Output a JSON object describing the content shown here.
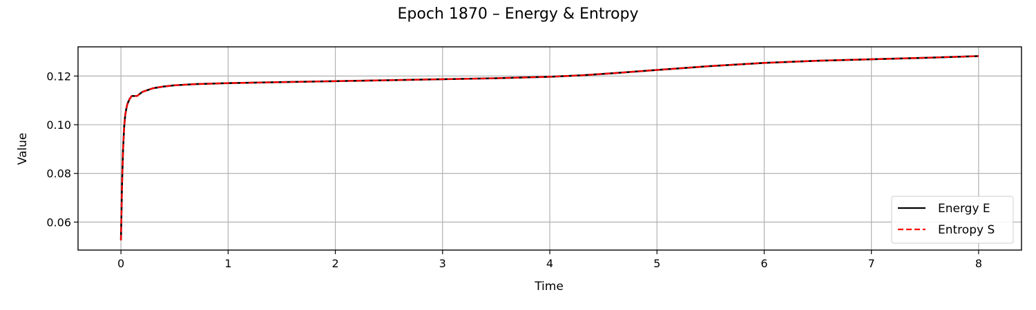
{
  "chart_data": {
    "type": "line",
    "title": "Epoch 1870 – Energy & Entropy",
    "xlabel": "Time",
    "ylabel": "Value",
    "xlim": [
      -0.4,
      8.4
    ],
    "ylim": [
      0.0485,
      0.132
    ],
    "xticks": [
      0,
      1,
      2,
      3,
      4,
      5,
      6,
      7,
      8
    ],
    "yticks": [
      0.06,
      0.08,
      0.1,
      0.12
    ],
    "ytick_labels": [
      "0.06",
      "0.08",
      "0.10",
      "0.12"
    ],
    "grid": true,
    "legend": "lower-right",
    "series": [
      {
        "name": "Energy E",
        "color": "#000000",
        "style": "solid",
        "x": [
          0,
          0.01,
          0.02,
          0.03,
          0.04,
          0.05,
          0.06,
          0.08,
          0.1,
          0.12,
          0.15,
          0.2,
          0.3,
          0.4,
          0.5,
          0.7,
          1.0,
          1.5,
          2.0,
          2.5,
          3.0,
          3.5,
          4.0,
          4.3,
          4.6,
          5.0,
          5.5,
          6.0,
          6.5,
          7.0,
          7.5,
          8.0
        ],
        "y": [
          0.0525,
          0.075,
          0.09,
          0.099,
          0.104,
          0.1065,
          0.1085,
          0.1105,
          0.1118,
          0.1118,
          0.1118,
          0.1135,
          0.115,
          0.1157,
          0.1162,
          0.1167,
          0.1171,
          0.1175,
          0.1179,
          0.1183,
          0.1187,
          0.1191,
          0.1197,
          0.1203,
          0.1212,
          0.1225,
          0.1241,
          0.1254,
          0.1263,
          0.1269,
          0.1275,
          0.1282
        ]
      },
      {
        "name": "Entropy S",
        "color": "#ff0000",
        "style": "dashed",
        "x": [
          0,
          0.01,
          0.02,
          0.03,
          0.04,
          0.05,
          0.06,
          0.08,
          0.1,
          0.12,
          0.15,
          0.2,
          0.3,
          0.4,
          0.5,
          0.7,
          1.0,
          1.5,
          2.0,
          2.5,
          3.0,
          3.5,
          4.0,
          4.3,
          4.6,
          5.0,
          5.5,
          6.0,
          6.5,
          7.0,
          7.5,
          8.0
        ],
        "y": [
          0.0525,
          0.075,
          0.09,
          0.099,
          0.104,
          0.1065,
          0.1085,
          0.1105,
          0.1118,
          0.1118,
          0.1118,
          0.1135,
          0.115,
          0.1157,
          0.1162,
          0.1167,
          0.1171,
          0.1175,
          0.1179,
          0.1183,
          0.1187,
          0.1191,
          0.1197,
          0.1203,
          0.1212,
          0.1225,
          0.1241,
          0.1254,
          0.1263,
          0.1269,
          0.1275,
          0.1282
        ]
      }
    ]
  }
}
